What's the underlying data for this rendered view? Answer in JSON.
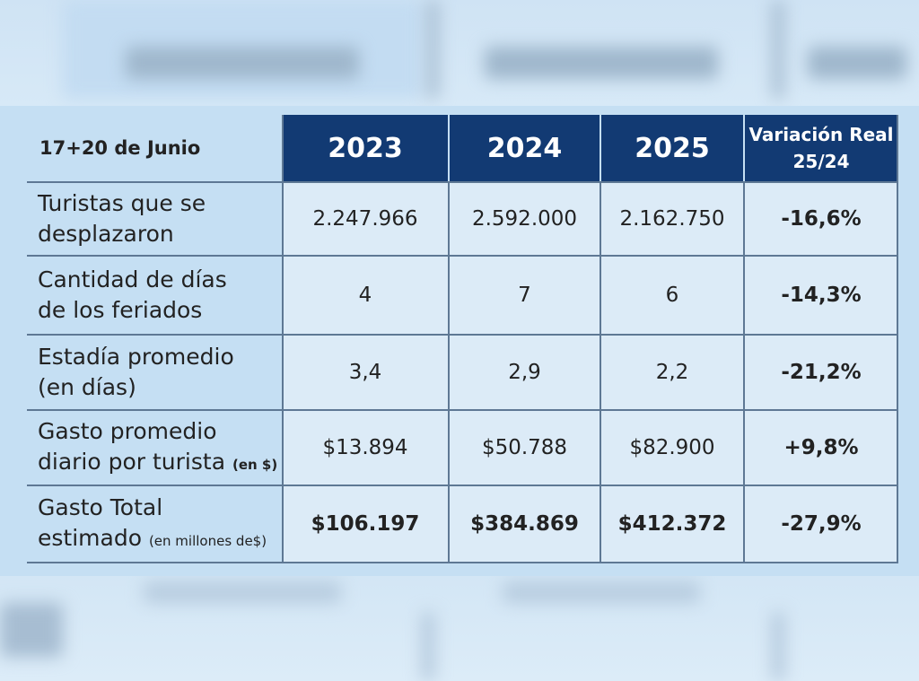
{
  "table": {
    "header": {
      "corner": "17+20 de Junio",
      "years": [
        "2023",
        "2024",
        "2025"
      ],
      "variation_line1": "Variación Real",
      "variation_line2": "25/24"
    },
    "rows": [
      {
        "label_line1": "Turistas que se",
        "label_line2": "desplazaron",
        "label_unit": "",
        "values": [
          "2.247.966",
          "2.592.000",
          "2.162.750"
        ],
        "variation": "-16,6%",
        "values_bold": false
      },
      {
        "label_line1": "Cantidad de días",
        "label_line2": "de los feriados",
        "label_unit": "",
        "values": [
          "4",
          "7",
          "6"
        ],
        "variation": "-14,3%",
        "values_bold": false
      },
      {
        "label_line1": "Estadía promedio",
        "label_line2": "(en días)",
        "label_unit": "",
        "values": [
          "3,4",
          "2,9",
          "2,2"
        ],
        "variation": "-21,2%",
        "values_bold": false
      },
      {
        "label_line1": "Gasto promedio",
        "label_line2": "diario por turista",
        "label_unit": "(en $)",
        "values": [
          "$13.894",
          "$50.788",
          "$82.900"
        ],
        "variation": "+9,8%",
        "values_bold": false
      },
      {
        "label_line1": "Gasto Total",
        "label_line2": "estimado",
        "label_unit": "(en millones de$)",
        "values": [
          "$106.197",
          "$384.869",
          "$412.372"
        ],
        "variation": "-27,9%",
        "values_bold": true
      }
    ]
  },
  "colors": {
    "header_bg": "#123a73",
    "header_text": "#ffffff",
    "body_bg": "#dcebf7",
    "label_bg": "#c5dff3",
    "grid_line": "#5e7894"
  }
}
